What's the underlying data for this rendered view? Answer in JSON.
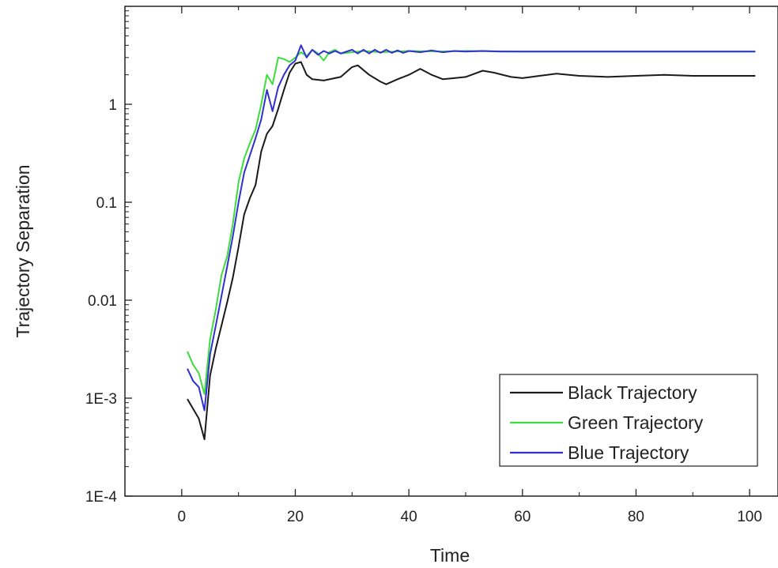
{
  "chart_data": {
    "type": "line",
    "title": "",
    "xlabel": "Time",
    "ylabel": "Trajectory Separation",
    "xlim": [
      -10,
      105
    ],
    "ylim": [
      0.0001,
      10
    ],
    "yscale": "log",
    "grid": false,
    "legend_position": "bottom-right",
    "x_ticks": [
      0,
      20,
      40,
      60,
      80,
      100
    ],
    "x_tick_labels": [
      "0",
      "20",
      "40",
      "60",
      "80",
      "100"
    ],
    "y_ticks": [
      0.0001,
      0.001,
      0.01,
      0.1,
      1
    ],
    "y_tick_labels": [
      "1E-4",
      "1E-3",
      "0.01",
      "0.1",
      "1"
    ],
    "series": [
      {
        "name": "Black Trajectory",
        "color": "#1a1a1a",
        "points": [
          [
            1,
            0.00098
          ],
          [
            2,
            0.00078
          ],
          [
            3,
            0.00062
          ],
          [
            4,
            0.00038
          ],
          [
            5,
            0.0017
          ],
          [
            6,
            0.0032
          ],
          [
            7,
            0.0055
          ],
          [
            8,
            0.0095
          ],
          [
            9,
            0.017
          ],
          [
            10,
            0.035
          ],
          [
            11,
            0.075
          ],
          [
            12,
            0.11
          ],
          [
            13,
            0.15
          ],
          [
            14,
            0.33
          ],
          [
            15,
            0.5
          ],
          [
            16,
            0.6
          ],
          [
            17,
            0.9
          ],
          [
            18,
            1.4
          ],
          [
            19,
            2.1
          ],
          [
            20,
            2.6
          ],
          [
            21,
            2.7
          ],
          [
            22,
            2.0
          ],
          [
            23,
            1.8
          ],
          [
            25,
            1.75
          ],
          [
            28,
            1.9
          ],
          [
            30,
            2.4
          ],
          [
            31,
            2.5
          ],
          [
            33,
            2.0
          ],
          [
            35,
            1.7
          ],
          [
            36,
            1.6
          ],
          [
            38,
            1.8
          ],
          [
            40,
            2.0
          ],
          [
            42,
            2.3
          ],
          [
            44,
            2.0
          ],
          [
            46,
            1.8
          ],
          [
            48,
            1.85
          ],
          [
            50,
            1.9
          ],
          [
            53,
            2.2
          ],
          [
            55,
            2.1
          ],
          [
            58,
            1.9
          ],
          [
            60,
            1.85
          ],
          [
            63,
            1.95
          ],
          [
            66,
            2.05
          ],
          [
            70,
            1.95
          ],
          [
            75,
            1.9
          ],
          [
            80,
            1.95
          ],
          [
            85,
            2.0
          ],
          [
            90,
            1.95
          ],
          [
            95,
            1.95
          ],
          [
            101,
            1.95
          ]
        ]
      },
      {
        "name": "Green Trajectory",
        "color": "#3ddc3d",
        "points": [
          [
            1,
            0.003
          ],
          [
            2,
            0.0022
          ],
          [
            3,
            0.0018
          ],
          [
            4,
            0.0011
          ],
          [
            5,
            0.004
          ],
          [
            6,
            0.008
          ],
          [
            7,
            0.018
          ],
          [
            8,
            0.028
          ],
          [
            9,
            0.06
          ],
          [
            10,
            0.16
          ],
          [
            11,
            0.28
          ],
          [
            12,
            0.4
          ],
          [
            13,
            0.55
          ],
          [
            14,
            1.0
          ],
          [
            15,
            2.0
          ],
          [
            16,
            1.6
          ],
          [
            17,
            3.0
          ],
          [
            18,
            2.9
          ],
          [
            19,
            2.7
          ],
          [
            20,
            3.0
          ],
          [
            21,
            3.4
          ],
          [
            22,
            3.1
          ],
          [
            23,
            3.6
          ],
          [
            24,
            3.3
          ],
          [
            25,
            2.8
          ],
          [
            26,
            3.4
          ],
          [
            27,
            3.6
          ],
          [
            28,
            3.3
          ],
          [
            30,
            3.4
          ],
          [
            32,
            3.5
          ],
          [
            35,
            3.4
          ],
          [
            40,
            3.5
          ],
          [
            45,
            3.45
          ],
          [
            50,
            3.5
          ],
          [
            60,
            3.45
          ],
          [
            70,
            3.45
          ],
          [
            80,
            3.45
          ],
          [
            90,
            3.45
          ],
          [
            101,
            3.45
          ]
        ]
      },
      {
        "name": "Blue Trajectory",
        "color": "#3030d0",
        "points": [
          [
            1,
            0.002
          ],
          [
            2,
            0.0015
          ],
          [
            3,
            0.0013
          ],
          [
            4,
            0.00075
          ],
          [
            5,
            0.0028
          ],
          [
            6,
            0.0055
          ],
          [
            7,
            0.011
          ],
          [
            8,
            0.022
          ],
          [
            9,
            0.045
          ],
          [
            10,
            0.1
          ],
          [
            11,
            0.2
          ],
          [
            12,
            0.3
          ],
          [
            13,
            0.45
          ],
          [
            14,
            0.7
          ],
          [
            15,
            1.4
          ],
          [
            16,
            0.85
          ],
          [
            17,
            1.5
          ],
          [
            18,
            2.0
          ],
          [
            19,
            2.5
          ],
          [
            20,
            2.8
          ],
          [
            21,
            4.0
          ],
          [
            22,
            3.0
          ],
          [
            23,
            3.6
          ],
          [
            24,
            3.2
          ],
          [
            25,
            3.5
          ],
          [
            26,
            3.3
          ],
          [
            27,
            3.5
          ],
          [
            28,
            3.3
          ],
          [
            30,
            3.6
          ],
          [
            31,
            3.3
          ],
          [
            32,
            3.6
          ],
          [
            33,
            3.3
          ],
          [
            34,
            3.6
          ],
          [
            35,
            3.35
          ],
          [
            36,
            3.6
          ],
          [
            37,
            3.35
          ],
          [
            38,
            3.55
          ],
          [
            39,
            3.35
          ],
          [
            40,
            3.5
          ],
          [
            42,
            3.4
          ],
          [
            44,
            3.55
          ],
          [
            46,
            3.4
          ],
          [
            48,
            3.5
          ],
          [
            50,
            3.45
          ],
          [
            53,
            3.5
          ],
          [
            56,
            3.45
          ],
          [
            60,
            3.45
          ],
          [
            70,
            3.45
          ],
          [
            80,
            3.45
          ],
          [
            90,
            3.45
          ],
          [
            101,
            3.45
          ]
        ]
      }
    ]
  }
}
